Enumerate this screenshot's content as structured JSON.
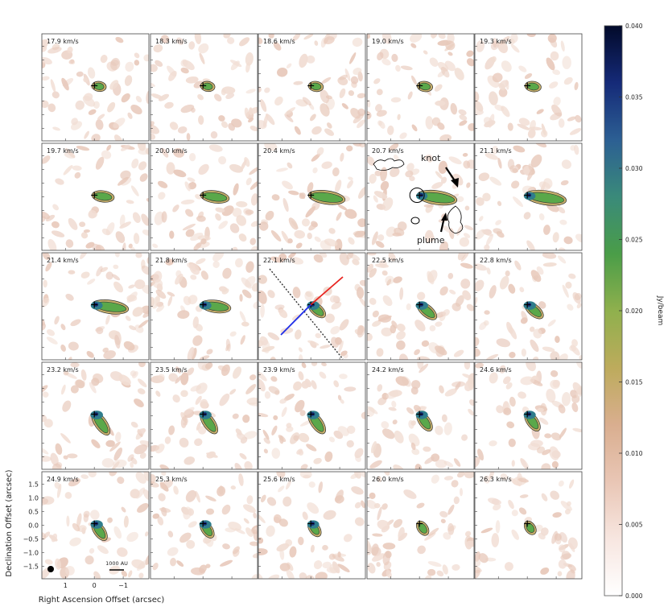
{
  "chart_data": {
    "type": "heatmap",
    "description_kind": "channel maps",
    "panels": [
      {
        "velocity": "17.9 km/s",
        "ext": 0.1,
        "dens": 0.15
      },
      {
        "velocity": "18.3 km/s",
        "ext": 0.1,
        "dens": 0.15
      },
      {
        "velocity": "18.6 km/s",
        "ext": 0.12,
        "dens": 0.2
      },
      {
        "velocity": "19.0 km/s",
        "ext": 0.14,
        "dens": 0.25
      },
      {
        "velocity": "19.3 km/s",
        "ext": 0.16,
        "dens": 0.3
      },
      {
        "velocity": "19.7 km/s",
        "ext": 0.35,
        "dens": 0.35
      },
      {
        "velocity": "20.0 km/s",
        "ext": 0.55,
        "dens": 0.4
      },
      {
        "velocity": "20.4 km/s",
        "ext": 0.8,
        "dens": 0.45
      },
      {
        "velocity": "20.7 km/s",
        "ext": 0.9,
        "dens": 0.7
      },
      {
        "velocity": "21.1 km/s",
        "ext": 0.95,
        "dens": 0.75
      },
      {
        "velocity": "21.4 km/s",
        "ext": 0.8,
        "dens": 0.8
      },
      {
        "velocity": "21.8 km/s",
        "ext": 0.6,
        "dens": 0.85
      },
      {
        "velocity": "22.1 km/s",
        "ext": 0.3,
        "dens": 0.95
      },
      {
        "velocity": "22.5 km/s",
        "ext": 0.4,
        "dens": 0.9
      },
      {
        "velocity": "22.8 km/s",
        "ext": 0.35,
        "dens": 0.9
      },
      {
        "velocity": "23.2 km/s",
        "ext": 0.5,
        "dens": 0.95
      },
      {
        "velocity": "23.5 km/s",
        "ext": 0.45,
        "dens": 0.9
      },
      {
        "velocity": "23.9 km/s",
        "ext": 0.45,
        "dens": 0.9
      },
      {
        "velocity": "24.2 km/s",
        "ext": 0.35,
        "dens": 0.85
      },
      {
        "velocity": "24.6 km/s",
        "ext": 0.35,
        "dens": 0.85
      },
      {
        "velocity": "24.9 km/s",
        "ext": 0.35,
        "dens": 0.9
      },
      {
        "velocity": "25.3 km/s",
        "ext": 0.25,
        "dens": 0.85
      },
      {
        "velocity": "25.6 km/s",
        "ext": 0.2,
        "dens": 0.8
      },
      {
        "velocity": "26.0 km/s",
        "ext": 0.15,
        "dens": 0.6
      },
      {
        "velocity": "26.3 km/s",
        "ext": 0.12,
        "dens": 0.5
      }
    ],
    "xlabel": "Right Ascension Offset (arcsec)",
    "ylabel": "Declination Offset (arcsec)",
    "x_ticks": [
      "1",
      "0",
      "−1"
    ],
    "y_ticks": [
      "1.5",
      "1.0",
      "0.5",
      "0.0",
      "−0.5",
      "−1.0",
      "−1.5"
    ],
    "annotations": {
      "knot": "knot",
      "plume": "plume",
      "scalebar": "1000 AU"
    },
    "colorbar": {
      "label": "Jy/beam",
      "ticks": [
        "0.040",
        "0.035",
        "0.030",
        "0.025",
        "0.020",
        "0.015",
        "0.010",
        "0.005",
        "0.000"
      ],
      "range": [
        0.0,
        0.04
      ],
      "colors": [
        "#ffffff",
        "#f7e6e0",
        "#e9c6b5",
        "#d9ae8f",
        "#bdab5c",
        "#8fb04d",
        "#4a9d48",
        "#3a8a7a",
        "#2c5f93",
        "#152a78",
        "#020a2a"
      ]
    },
    "colors": {
      "redshifted_axis": "#e8231f",
      "blueshifted_axis": "#1f2ee8",
      "outflow_axis": "#333333"
    }
  }
}
